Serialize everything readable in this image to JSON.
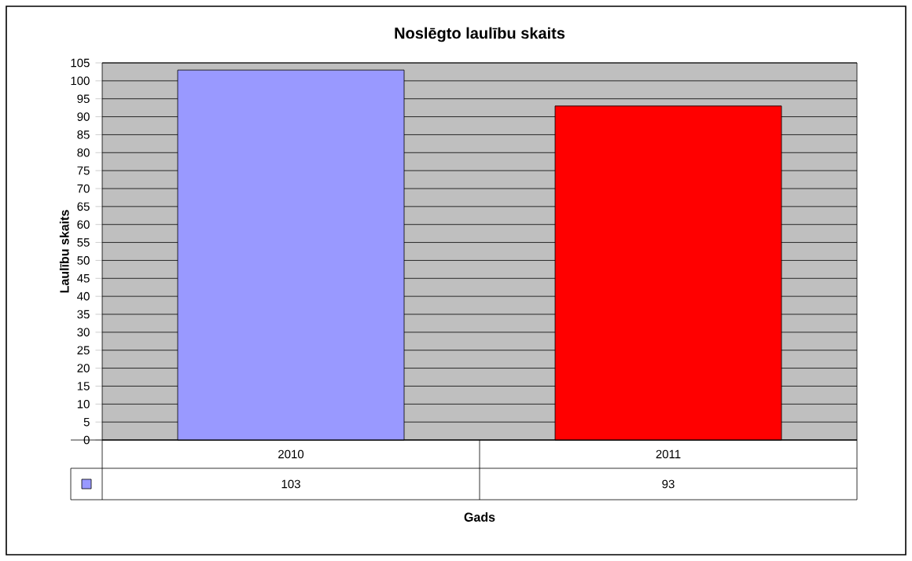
{
  "chart_data": {
    "type": "bar",
    "title": "Noslēgto laulību skaits",
    "xlabel": "Gads",
    "ylabel": "Laulību skaits",
    "categories": [
      "2010",
      "2011"
    ],
    "values": [
      103,
      93
    ],
    "colors": [
      "#9999ff",
      "#ff0000"
    ],
    "ylim": [
      0,
      105
    ],
    "yticks": [
      0,
      5,
      10,
      15,
      20,
      25,
      30,
      35,
      40,
      45,
      50,
      55,
      60,
      65,
      70,
      75,
      80,
      85,
      90,
      95,
      100,
      105
    ],
    "grid": "y",
    "data_labels": true
  }
}
